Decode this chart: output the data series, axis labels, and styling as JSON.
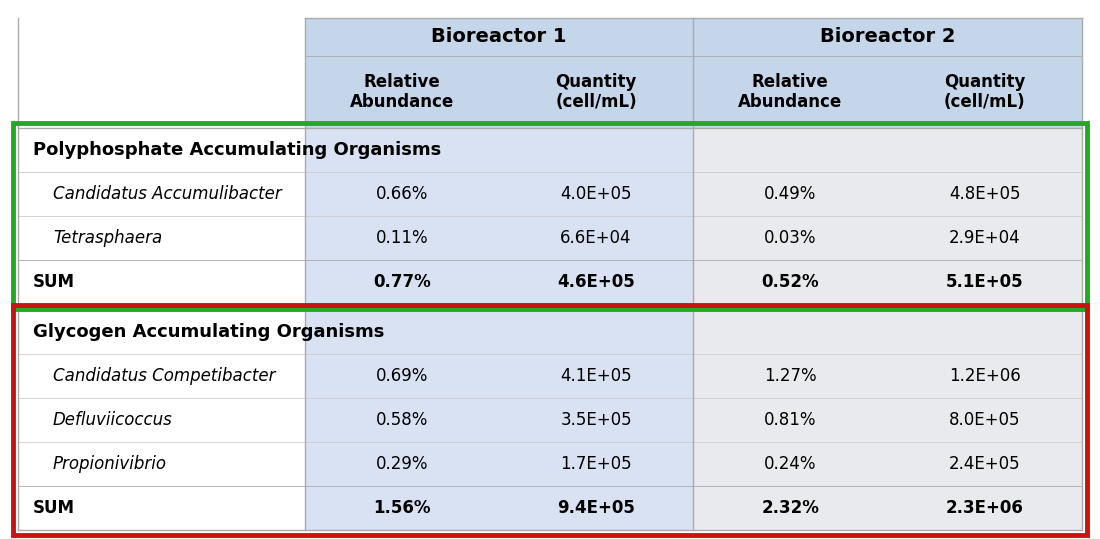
{
  "bioreactor1_header": "Bioreactor 1",
  "bioreactor2_header": "Bioreactor 2",
  "col_headers": [
    "Relative\nAbundance",
    "Quantity\n(cell/mL)",
    "Relative\nAbundance",
    "Quantity\n(cell/mL)"
  ],
  "section1_title": "Polyphosphate Accumulating Organisms",
  "section1_rows": [
    [
      "Candidatus Accumulibacter",
      "0.66%",
      "4.0E+05",
      "0.49%",
      "4.8E+05"
    ],
    [
      "Tetrasphaera",
      "0.11%",
      "6.6E+04",
      "0.03%",
      "2.9E+04"
    ],
    [
      "SUM",
      "0.77%",
      "4.6E+05",
      "0.52%",
      "5.1E+05"
    ]
  ],
  "section2_title": "Glycogen Accumulating Organisms",
  "section2_rows": [
    [
      "Candidatus Competibacter",
      "0.69%",
      "4.1E+05",
      "1.27%",
      "1.2E+06"
    ],
    [
      "Defluviicoccus",
      "0.58%",
      "3.5E+05",
      "0.81%",
      "8.0E+05"
    ],
    [
      "Propionivibrio",
      "0.29%",
      "1.7E+05",
      "0.24%",
      "2.4E+05"
    ],
    [
      "SUM",
      "1.56%",
      "9.4E+05",
      "2.32%",
      "2.3E+06"
    ]
  ],
  "header_bg_color": "#c5d5ea",
  "data_bg_b1_color": "#d9e2f3",
  "data_bg_b2_color": "#e8eaed",
  "green_box_color": "#22aa22",
  "red_box_color": "#cc1111"
}
